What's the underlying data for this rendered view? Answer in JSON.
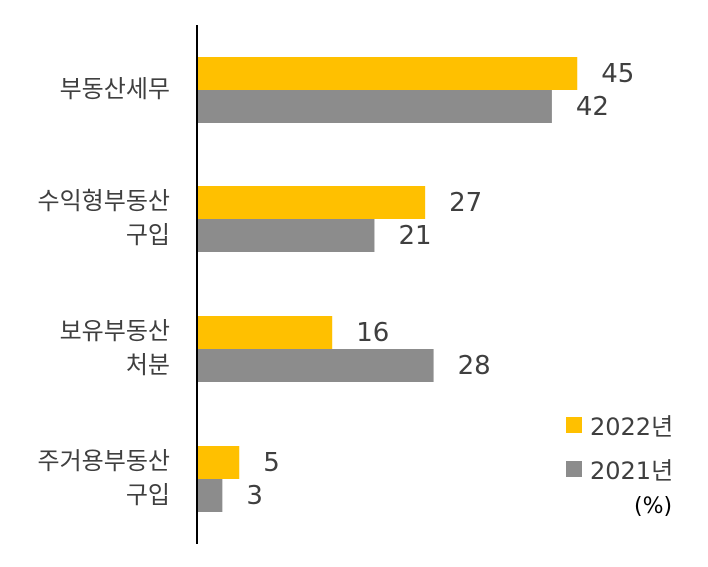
{
  "chart_data": {
    "type": "bar",
    "orientation": "horizontal",
    "categories": [
      "부동산세무",
      "수익형부동산\n구입",
      "보유부동산\n처분",
      "주거용부동산\n구입"
    ],
    "series": [
      {
        "name": "2022년",
        "values": [
          45,
          27,
          16,
          5
        ],
        "color": "#FFC000"
      },
      {
        "name": "2021년",
        "values": [
          42,
          21,
          28,
          3
        ],
        "color": "#8C8C8C"
      }
    ],
    "unit": "(%)",
    "xlim": [
      0,
      50
    ],
    "grid": false,
    "legend_position": "bottom-right"
  }
}
